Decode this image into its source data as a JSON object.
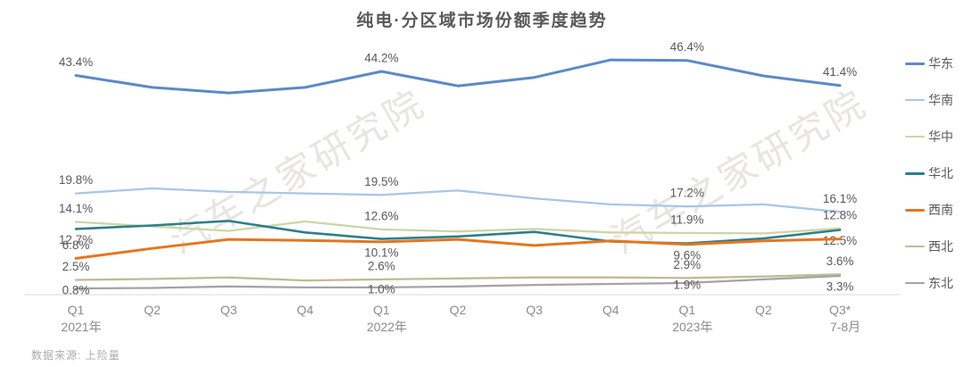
{
  "title": "纯电·分区域市场份额季度趋势",
  "footer": {
    "source_label": "数据来源: 上险量"
  },
  "watermark": {
    "text": "汽车之家研究院"
  },
  "colors": {
    "title_text": "#595959",
    "data_label_text": "#595959",
    "axis_label_text": "#8C8C8C",
    "axis_line": "#D9D9D9",
    "footer_text": "#ABABAB",
    "watermark_text": "rgba(203,198,184,0.45)"
  },
  "chart_data": {
    "type": "line",
    "unit": "%",
    "ylim": [
      0,
      50
    ],
    "grid": false,
    "legend_position": "right",
    "categories": [
      "Q1",
      "Q2",
      "Q3",
      "Q4",
      "Q1",
      "Q2",
      "Q3",
      "Q4",
      "Q1",
      "Q2",
      "Q3*"
    ],
    "category_sublabels": [
      {
        "index": 0,
        "text": "2021年"
      },
      {
        "index": 4,
        "text": "2022年"
      },
      {
        "index": 8,
        "text": "2023年"
      },
      {
        "index": 10,
        "text": "7-8月"
      }
    ],
    "series": [
      {
        "key": "huadong",
        "name": "华东",
        "color": "#5B8AC7",
        "width": 3,
        "values": [
          43.4,
          41.0,
          39.9,
          41.0,
          44.2,
          41.3,
          43.0,
          46.5,
          46.4,
          43.3,
          41.4
        ],
        "labels": [
          {
            "index": 0,
            "text": "43.4%",
            "placement": "above"
          },
          {
            "index": 4,
            "text": "44.2%",
            "placement": "above"
          },
          {
            "index": 8,
            "text": "46.4%",
            "placement": "above"
          },
          {
            "index": 10,
            "text": "41.4%",
            "placement": "above"
          }
        ]
      },
      {
        "key": "huanan",
        "name": "华南",
        "color": "#A9C6E8",
        "width": 2.3,
        "values": [
          19.8,
          20.8,
          20.1,
          19.8,
          19.5,
          20.4,
          18.8,
          17.6,
          17.2,
          17.6,
          16.1
        ],
        "labels": [
          {
            "index": 0,
            "text": "19.8%",
            "placement": "above"
          },
          {
            "index": 4,
            "text": "19.5%",
            "placement": "above"
          },
          {
            "index": 8,
            "text": "17.2%",
            "placement": "above"
          },
          {
            "index": 10,
            "text": "16.1%",
            "placement": "above"
          }
        ]
      },
      {
        "key": "huazhong",
        "name": "华中",
        "color": "#CCD6A6",
        "width": 2.3,
        "values": [
          14.1,
          13.2,
          12.3,
          14.2,
          12.6,
          12.2,
          12.7,
          12.0,
          11.9,
          11.8,
          12.8
        ],
        "labels": [
          {
            "index": 0,
            "text": "14.1%",
            "placement": "above"
          },
          {
            "index": 4,
            "text": "12.6%",
            "placement": "above"
          },
          {
            "index": 8,
            "text": "11.9%",
            "placement": "above"
          },
          {
            "index": 10,
            "text": "12.8%",
            "placement": "above"
          }
        ]
      },
      {
        "key": "huabei",
        "name": "华北",
        "color": "#2E7F8C",
        "width": 2.6,
        "values": [
          12.7,
          13.4,
          14.3,
          12.0,
          10.7,
          11.2,
          12.1,
          10.2,
          9.8,
          10.8,
          12.5
        ],
        "labels": [
          {
            "index": 0,
            "text": "12.7%",
            "placement": "below"
          },
          {
            "index": 10,
            "text": "12.5%",
            "placement": "below"
          }
        ]
      },
      {
        "key": "xinan",
        "name": "西南",
        "color": "#E5761E",
        "width": 3,
        "values": [
          6.8,
          8.8,
          10.6,
          10.4,
          10.1,
          10.6,
          9.4,
          10.3,
          9.6,
          10.3,
          10.7
        ],
        "labels": [
          {
            "index": 0,
            "text": "6.8%",
            "placement": "above"
          },
          {
            "index": 4,
            "text": "10.1%",
            "placement": "below"
          },
          {
            "index": 8,
            "text": "9.6%",
            "placement": "below"
          }
        ]
      },
      {
        "key": "xibei",
        "name": "西北",
        "color": "#C2BA96",
        "width": 2.3,
        "values": [
          2.5,
          2.7,
          3.0,
          2.4,
          2.6,
          2.8,
          3.0,
          3.0,
          2.9,
          3.2,
          3.6
        ],
        "labels": [
          {
            "index": 0,
            "text": "2.5%",
            "placement": "above"
          },
          {
            "index": 4,
            "text": "2.6%",
            "placement": "above"
          },
          {
            "index": 8,
            "text": "2.9%",
            "placement": "above"
          },
          {
            "index": 10,
            "text": "3.6%",
            "placement": "above"
          }
        ]
      },
      {
        "key": "dongbei",
        "name": "东北",
        "color": "#A3A4A6",
        "width": 2.3,
        "values": [
          0.8,
          0.9,
          1.2,
          1.0,
          1.0,
          1.2,
          1.5,
          1.7,
          1.9,
          2.6,
          3.3
        ],
        "labels": [
          {
            "index": 0,
            "text": "0.8%",
            "placement": "on"
          },
          {
            "index": 4,
            "text": "1.0%",
            "placement": "on"
          },
          {
            "index": 8,
            "text": "1.9%",
            "placement": "on"
          },
          {
            "index": 10,
            "text": "3.3%",
            "placement": "below"
          }
        ]
      }
    ]
  }
}
